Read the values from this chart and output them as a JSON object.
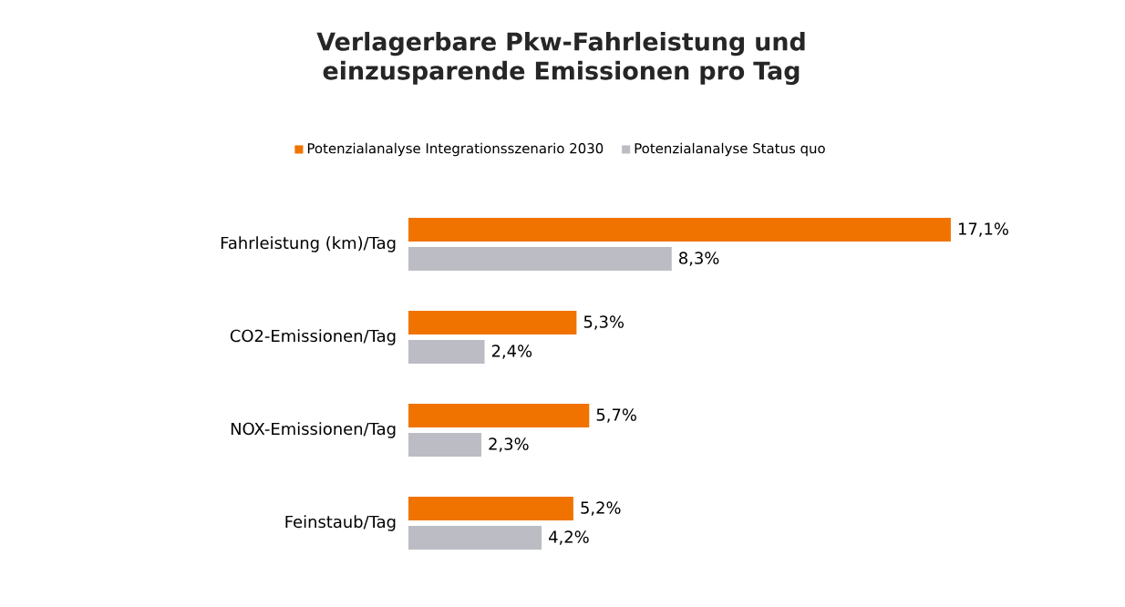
{
  "chart_data": {
    "type": "bar",
    "orientation": "horizontal",
    "title": "Verlagerbare Pkw-Fahrleistung und einzusparende Emissionen pro Tag",
    "categories": [
      "Fahrleistung (km)/Tag",
      "CO2-Emissionen/Tag",
      "NOX-Emissionen/Tag",
      "Feinstaub/Tag"
    ],
    "series": [
      {
        "name": "Potenzialanalyse Integrationsszenario 2030",
        "color": "#f07300",
        "values": [
          17.1,
          5.3,
          5.7,
          5.2
        ],
        "value_labels": [
          "17,1%",
          "5,3%",
          "5,7%",
          "5,2%"
        ]
      },
      {
        "name": "Potenzialanalyse Status quo",
        "color": "#bcbcc4",
        "values": [
          8.3,
          2.4,
          2.3,
          4.2
        ],
        "value_labels": [
          "8,3%",
          "2,4%",
          "2,3%",
          "4,2%"
        ]
      }
    ],
    "legend": "top",
    "grid": false
  }
}
